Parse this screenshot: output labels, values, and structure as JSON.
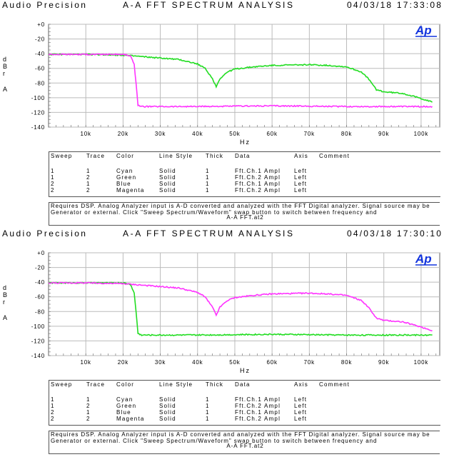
{
  "panels": [
    {
      "header": {
        "brand": "Audio Precision",
        "title": "A-A FFT SPECTRUM ANALYSIS",
        "datetime": "04/03/18 17:33:08"
      },
      "logo": "Ap",
      "ylabel": [
        "d",
        "B",
        "r",
        "A"
      ],
      "chart_data": {
        "type": "line",
        "xlabel": "Hz",
        "xlim": [
          0,
          105000
        ],
        "ylim": [
          -140,
          0
        ],
        "x_ticks": [
          "10k",
          "20k",
          "30k",
          "40k",
          "50k",
          "60k",
          "70k",
          "80k",
          "90k",
          "100k"
        ],
        "y_ticks": [
          "+0",
          "-20",
          "-40",
          "-60",
          "-80",
          "-100",
          "-120",
          "-140"
        ],
        "grid": true,
        "series": [
          {
            "name": "Green",
            "color": "#22dd22",
            "x": [
              0,
              10000,
              20000,
              25000,
              30000,
              35000,
              40000,
              42000,
              44000,
              45000,
              46000,
              48000,
              50000,
              55000,
              60000,
              70000,
              75000,
              80000,
              84000,
              86000,
              88000,
              90000,
              95000,
              100000,
              103000
            ],
            "y": [
              -41,
              -41,
              -42,
              -44,
              -46,
              -48,
              -54,
              -60,
              -74,
              -85,
              -74,
              -65,
              -61,
              -58,
              -56,
              -55,
              -56,
              -58,
              -65,
              -75,
              -89,
              -92,
              -94,
              -101,
              -106
            ]
          },
          {
            "name": "Magenta",
            "color": "#ff33ff",
            "x": [
              0,
              10000,
              20000,
              22000,
              23000,
              23500,
              24000,
              25000,
              40000,
              60000,
              80000,
              103000
            ],
            "y": [
              -41,
              -41,
              -41,
              -43,
              -55,
              -80,
              -110,
              -112,
              -112,
              -111,
              -112,
              -112
            ]
          }
        ]
      },
      "legend": {
        "headers": [
          "Sweep",
          "Trace",
          "Color",
          "Line Style",
          "Thick",
          "Data",
          "Axis",
          "Comment"
        ],
        "rows": [
          [
            "1",
            "1",
            "Cyan",
            "Solid",
            "1",
            "Fft.Ch.1 Ampl",
            "Left"
          ],
          [
            "1",
            "2",
            "Green",
            "Solid",
            "1",
            "Fft.Ch.2 Ampl",
            "Left"
          ],
          [
            "2",
            "1",
            "Blue",
            "Solid",
            "1",
            "Fft.Ch.1 Ampl",
            "Left"
          ],
          [
            "2",
            "2",
            "Magenta",
            "Solid",
            "1",
            "Fft.Ch.2 Ampl",
            "Left"
          ]
        ]
      },
      "note": {
        "line1": "Requires DSP. Analog Analyzer input is A-D converted and analyzed with the FFT Digital analyzer. Signal source may be",
        "line2": "Generator or external. Click \"Sweep Spectrum/Waveform\" swap button to switch between frequency and",
        "file": "A-A FFT.at2"
      }
    },
    {
      "header": {
        "brand": "Audio Precision",
        "title": "A-A FFT SPECTRUM ANALYSIS",
        "datetime": "04/03/18 17:30:10"
      },
      "logo": "Ap",
      "ylabel": [
        "d",
        "B",
        "r",
        "A"
      ],
      "chart_data": {
        "type": "line",
        "xlabel": "Hz",
        "xlim": [
          0,
          105000
        ],
        "ylim": [
          -140,
          0
        ],
        "x_ticks": [
          "10k",
          "20k",
          "30k",
          "40k",
          "50k",
          "60k",
          "70k",
          "80k",
          "90k",
          "100k"
        ],
        "y_ticks": [
          "+0",
          "-20",
          "-40",
          "-60",
          "-80",
          "-100",
          "-120",
          "-140"
        ],
        "grid": true,
        "series": [
          {
            "name": "Green",
            "color": "#22dd22",
            "x": [
              0,
              10000,
              20000,
              22000,
              23000,
              23500,
              24000,
              25000,
              40000,
              60000,
              80000,
              103000
            ],
            "y": [
              -41,
              -41,
              -41,
              -43,
              -55,
              -80,
              -110,
              -112,
              -112,
              -111,
              -112,
              -112
            ]
          },
          {
            "name": "Magenta",
            "color": "#ff33ff",
            "x": [
              0,
              10000,
              20000,
              25000,
              30000,
              35000,
              40000,
              42000,
              44000,
              45000,
              46000,
              48000,
              50000,
              55000,
              60000,
              70000,
              75000,
              80000,
              84000,
              86000,
              88000,
              90000,
              95000,
              100000,
              103000
            ],
            "y": [
              -41,
              -41,
              -42,
              -44,
              -46,
              -48,
              -54,
              -60,
              -74,
              -85,
              -74,
              -65,
              -61,
              -58,
              -56,
              -55,
              -56,
              -58,
              -65,
              -75,
              -89,
              -92,
              -94,
              -101,
              -106
            ]
          }
        ]
      },
      "legend": {
        "headers": [
          "Sweep",
          "Trace",
          "Color",
          "Line Style",
          "Thick",
          "Data",
          "Axis",
          "Comment"
        ],
        "rows": [
          [
            "1",
            "1",
            "Cyan",
            "Solid",
            "1",
            "Fft.Ch.1 Ampl",
            "Left"
          ],
          [
            "1",
            "2",
            "Green",
            "Solid",
            "1",
            "Fft.Ch.2 Ampl",
            "Left"
          ],
          [
            "2",
            "1",
            "Blue",
            "Solid",
            "1",
            "Fft.Ch.1 Ampl",
            "Left"
          ],
          [
            "2",
            "2",
            "Magenta",
            "Solid",
            "1",
            "Fft.Ch.2 Ampl",
            "Left"
          ]
        ]
      },
      "note": {
        "line1": "Requires DSP. Analog Analyzer input is A-D converted and analyzed with the FFT Digital analyzer. Signal source may be",
        "line2": "Generator or external. Click \"Sweep Spectrum/Waveform\" swap button to switch between frequency and",
        "file": "A-A FFT.at2"
      }
    }
  ]
}
